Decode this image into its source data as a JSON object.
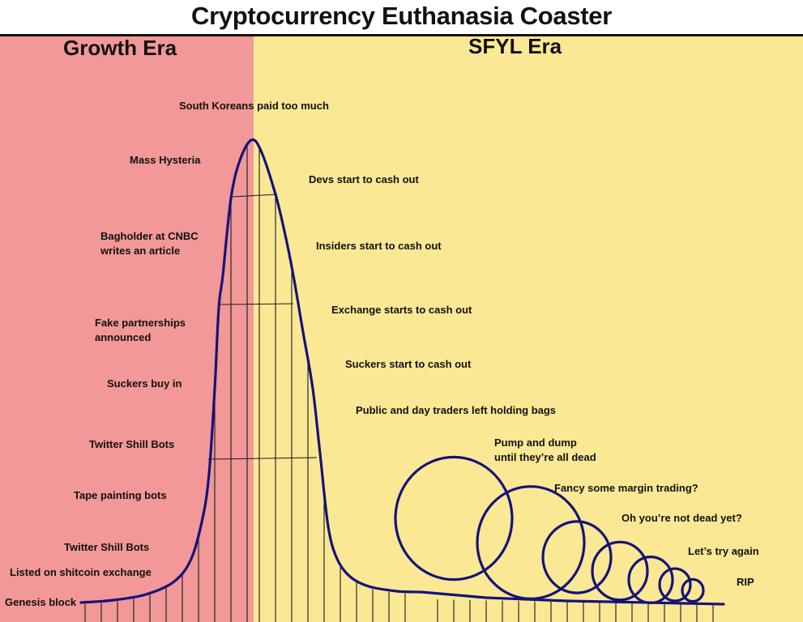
{
  "title": "Cryptocurrency Euthanasia Coaster",
  "eras": [
    {
      "name": "Growth Era",
      "color": "#f29898"
    },
    {
      "name": "SFYL Era",
      "color": "#fbe894"
    }
  ],
  "track_color": "#15127a",
  "support_color": "#1a1a1a",
  "labels": {
    "genesis": "Genesis block",
    "listed": "Listed on shitcoin exchange",
    "shill_bots_1": "Twitter Shill Bots",
    "tape_painting": "Tape painting bots",
    "shill_bots_2": "Twitter Shill Bots",
    "suckers_buy": "Suckers buy in",
    "fake_partnerships": "Fake partnerships\nannounced",
    "bagholder": "Bagholder at CNBC\n writes an article",
    "hysteria": "Mass Hysteria",
    "south_koreans": "South Koreans paid too much",
    "devs": "Devs start to cash out",
    "insiders": "Insiders start to cash out",
    "exchange": "Exchange starts to cash out",
    "suckers_cash": "Suckers start to cash out",
    "public": "Public and day traders left holding bags",
    "pump": "Pump and dump\nuntil they’re all dead",
    "margin": "Fancy some margin trading?",
    "not_dead": "Oh you’re not dead yet?",
    "try_again": "Let’s try again",
    "rip": "RIP"
  }
}
